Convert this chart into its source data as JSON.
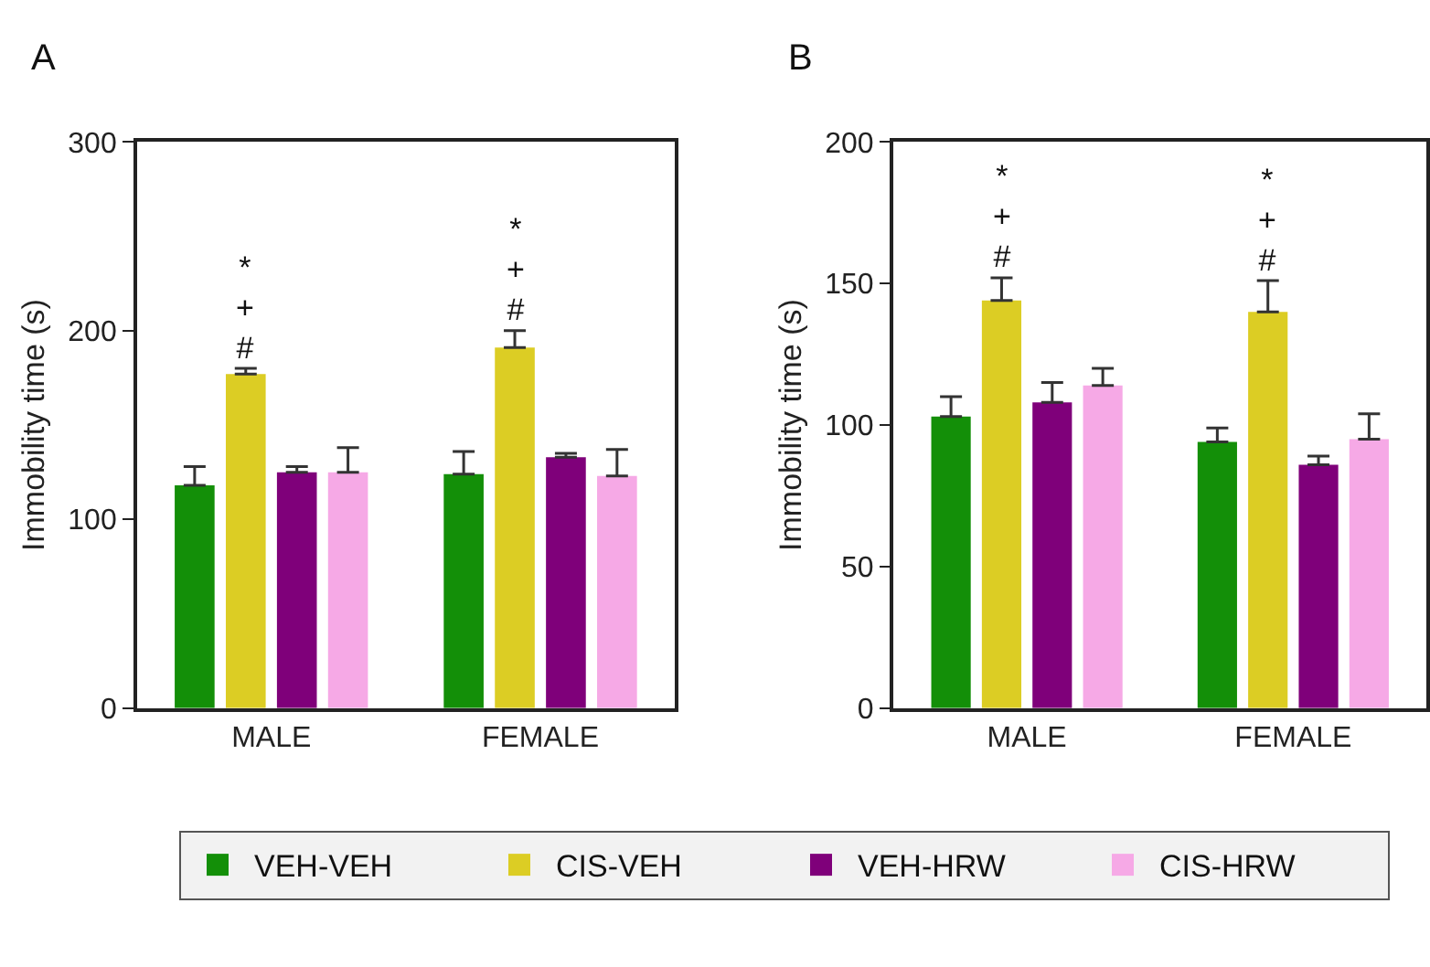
{
  "chart_data": [
    {
      "type": "bar",
      "title": "A",
      "ylabel": "Immobility time (s)",
      "categories": [
        "MALE",
        "FEMALE"
      ],
      "ylim": [
        0,
        300
      ],
      "yticks": [
        0,
        100,
        200,
        300
      ],
      "legend": "bottom",
      "series": [
        {
          "name": "VEH-VEH",
          "color": "#138f08",
          "values": [
            118,
            124
          ],
          "errors": [
            [
              118,
              128
            ],
            [
              124,
              136
            ]
          ]
        },
        {
          "name": "CIS-VEH",
          "color": "#dccd24",
          "values": [
            177,
            191
          ],
          "errors": [
            [
              177,
              180
            ],
            [
              191,
              200
            ]
          ]
        },
        {
          "name": "VEH-HRW",
          "color": "#7f007a",
          "values": [
            125,
            133
          ],
          "errors": [
            [
              125,
              128
            ],
            [
              133,
              135
            ]
          ]
        },
        {
          "name": "CIS-HRW",
          "color": "#f6a9e6",
          "values": [
            125,
            123
          ],
          "errors": [
            [
              125,
              138
            ],
            [
              123,
              137
            ]
          ]
        }
      ],
      "annotations": [
        {
          "text": "*\n+\n#",
          "x": "MALE",
          "y": 177
        },
        {
          "text": "*\n+\n#",
          "x": "FEMALE",
          "y": 191
        }
      ]
    },
    {
      "type": "bar",
      "title": "B",
      "ylabel": "Immobility time (s)",
      "categories": [
        "MALE",
        "FEMALE"
      ],
      "ylim": [
        0,
        200
      ],
      "yticks": [
        0,
        50,
        100,
        150,
        200
      ],
      "series": [
        {
          "color": "#138f08",
          "values": [
            103,
            94
          ],
          "errors": [
            [
              103,
              110
            ],
            [
              94,
              99
            ]
          ]
        },
        {
          "color": "#dccd24",
          "values": [
            144,
            140
          ],
          "errors": [
            [
              144,
              152
            ],
            [
              140,
              151
            ]
          ]
        },
        {
          "color": "#7f007a",
          "values": [
            108,
            86
          ],
          "errors": [
            [
              108,
              115
            ],
            [
              86,
              89
            ]
          ]
        },
        {
          "color": "#f6a9e6",
          "values": [
            114,
            95
          ],
          "errors": [
            [
              114,
              120
            ],
            [
              95,
              104
            ]
          ]
        }
      ],
      "annotations": [
        {
          "text": "*\n+\n#",
          "x": "MALE",
          "y": 144
        },
        {
          "text": "*\n+\n#",
          "x": "FEMALE",
          "y": 140
        }
      ]
    }
  ]
}
